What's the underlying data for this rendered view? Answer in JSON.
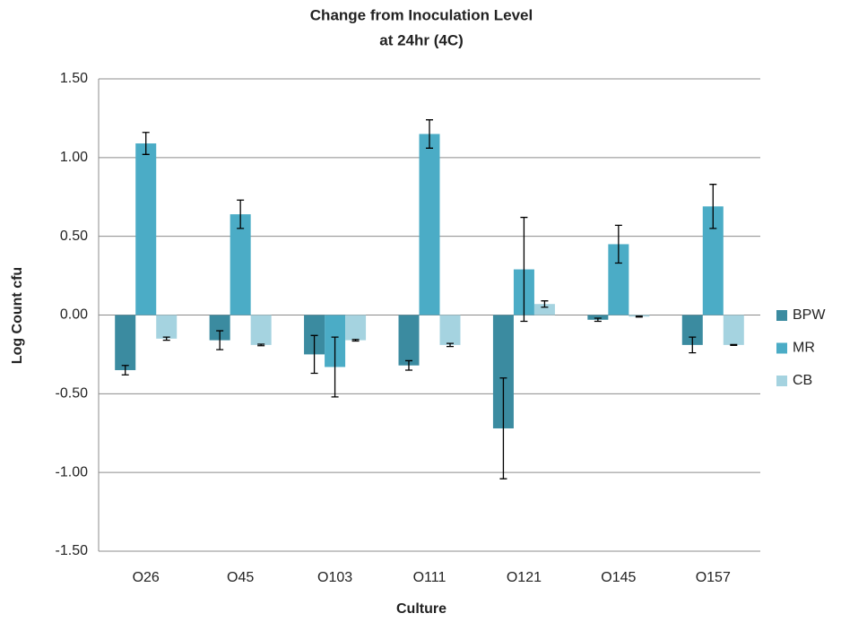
{
  "chart_data": {
    "type": "bar",
    "title_lines": [
      "Change from Inoculation  Level",
      "at 24hr (4C)"
    ],
    "x_label": "Culture",
    "y_label": "Log Count cfu",
    "categories": [
      "O26",
      "O45",
      "O103",
      "O111",
      "O121",
      "O145",
      "O157"
    ],
    "series": [
      {
        "name": "BPW",
        "color": "#3b8ba0",
        "values": [
          -0.35,
          -0.16,
          -0.25,
          -0.32,
          -0.72,
          -0.03,
          -0.19
        ],
        "errors": [
          0.03,
          0.06,
          0.12,
          0.03,
          0.32,
          0.01,
          0.05
        ]
      },
      {
        "name": "MR",
        "color": "#4bacc6",
        "values": [
          1.09,
          0.64,
          -0.33,
          1.15,
          0.29,
          0.45,
          0.69
        ],
        "errors": [
          0.07,
          0.09,
          0.19,
          0.09,
          0.33,
          0.12,
          0.14
        ]
      },
      {
        "name": "CB",
        "color": "#a5d3e0",
        "values": [
          -0.15,
          -0.19,
          -0.16,
          -0.19,
          0.07,
          -0.01,
          -0.19
        ],
        "errors": [
          0.01,
          0.005,
          0.005,
          0.01,
          0.02,
          0.003,
          0.003
        ]
      }
    ],
    "ylim": [
      -1.5,
      1.5
    ],
    "yticks": [
      {
        "value": -1.5,
        "label": "-1.50"
      },
      {
        "value": -1,
        "label": "-1.00"
      },
      {
        "value": -0.5,
        "label": "-0.50"
      },
      {
        "value": 0,
        "label": "0.00"
      },
      {
        "value": 0.5,
        "label": "0.50"
      },
      {
        "value": 1,
        "label": "1.00"
      },
      {
        "value": 1.5,
        "label": "1.50"
      }
    ],
    "grid": true,
    "legend": "right"
  }
}
